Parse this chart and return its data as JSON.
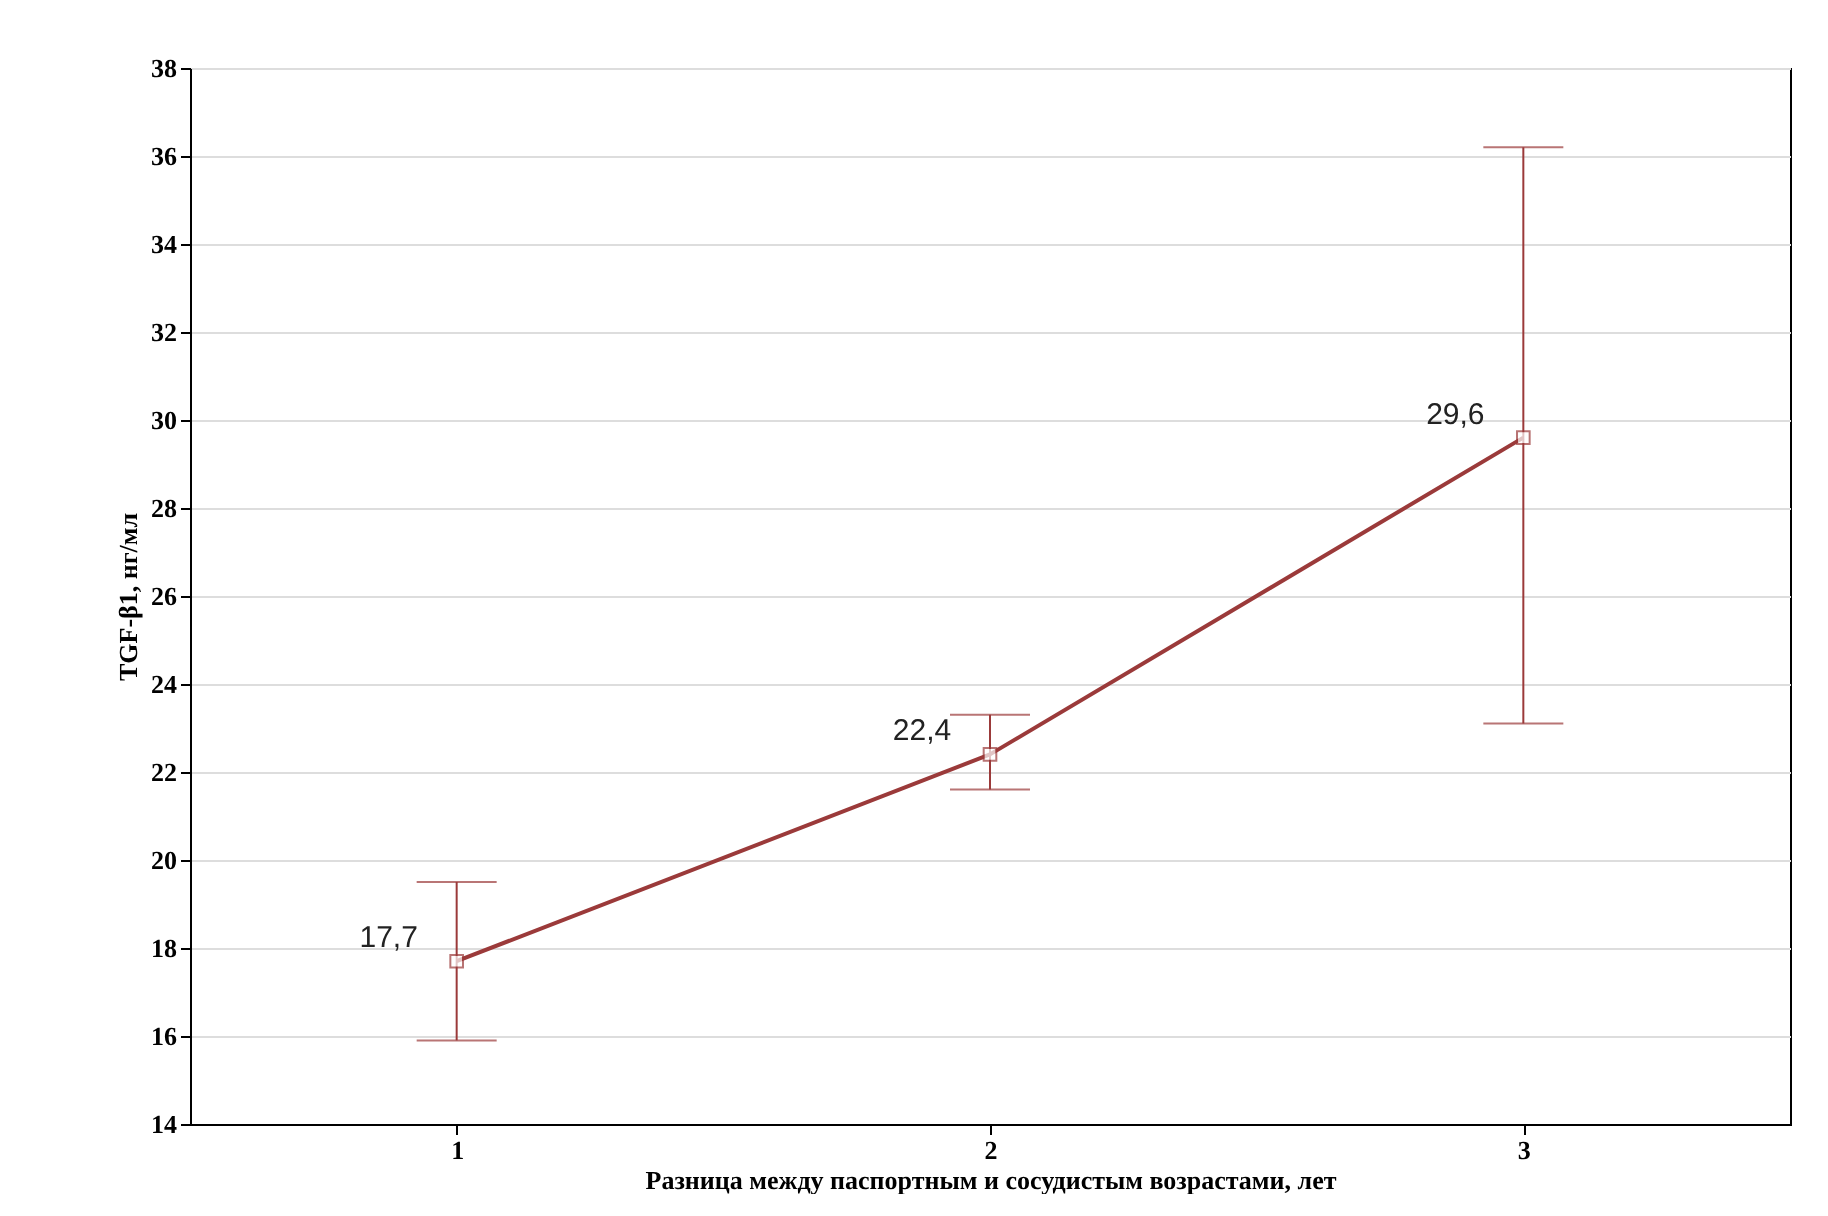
{
  "chart_data": {
    "type": "line",
    "xlabel": "Разница между паспортным и сосудистым возрастами, лет",
    "ylabel": "TGF-β1, нг/мл",
    "x": [
      1,
      2,
      3
    ],
    "xlim": [
      0.5,
      3.5
    ],
    "xticks": [
      1,
      2,
      3
    ],
    "ylim": [
      14,
      38
    ],
    "yticks": [
      14,
      16,
      18,
      20,
      22,
      24,
      26,
      28,
      30,
      32,
      34,
      36,
      38
    ],
    "series": [
      {
        "color": "#9b3a3a",
        "values": [
          17.7,
          22.4,
          29.6
        ],
        "errors": [
          [
            15.9,
            19.5
          ],
          [
            21.6,
            23.3
          ],
          [
            23.1,
            36.2
          ]
        ],
        "value_labels": [
          "17,7",
          "22,4",
          "29,6"
        ]
      }
    ],
    "grid": "y",
    "marker": "square",
    "line_style": "solid"
  }
}
